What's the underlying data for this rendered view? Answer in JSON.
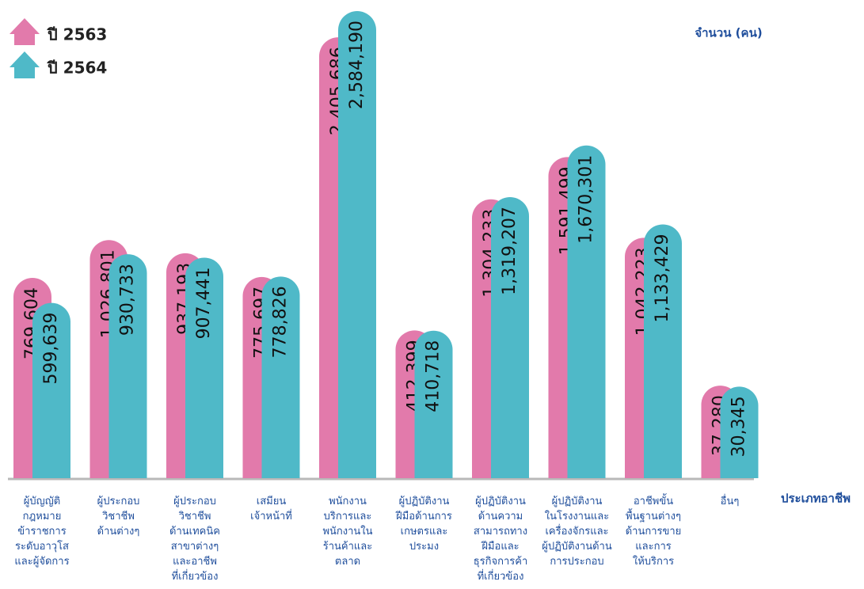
{
  "chart_data": {
    "type": "bar",
    "y_label": "จำนวน (คน)",
    "x_label": "ประเภทอาชีพ",
    "categories": [
      "ผู้บัญญัติ\nกฎหมาย\nข้าราชการ\nระดับอาวุโส\nและผู้จัดการ",
      "ผู้ประกอบ\nวิชาชีพ\nด้านต่างๆ",
      "ผู้ประกอบ\nวิชาชีพ\nด้านเทคนิค\nสาขาต่างๆ\nและอาชีพ\nที่เกี่ยวข้อง",
      "เสมียน\nเจ้าหน้าที่",
      "พนักงาน\nบริการและ\nพนักงานใน\nร้านค้าและ\nตลาด",
      "ผู้ปฏิบัติงาน\nฝีมือด้านการ\nเกษตรและ\nประมง",
      "ผู้ปฏิบัติงาน\nด้านความ\nสามารถทาง\nฝีมือและ\nธุรกิจการค้า\nที่เกี่ยวข้อง",
      "ผู้ปฏิบัติงาน\nในโรงงานและ\nเครื่องจักรและ\nผู้ปฏิบัติงานด้าน\nการประกอบ",
      "อาชีพขั้น\nพื้นฐานต่างๆ\nด้านการขาย\nและการ\nให้บริการ",
      "อื่นๆ"
    ],
    "series": [
      {
        "name": "ปี 2563",
        "color": "#e27aab",
        "values": [
          769604,
          1026801,
          937193,
          775697,
          2405686,
          412399,
          1304233,
          1591499,
          1042223,
          37280
        ],
        "value_labels": [
          "769,604",
          "1,026,801",
          "937,193",
          "775,697",
          "2,405,686",
          "412,399",
          "1,304,233",
          "1,591,499",
          "1,042,223",
          "37,280"
        ]
      },
      {
        "name": "ปี 2564",
        "color": "#4fb9c8",
        "values": [
          599639,
          930733,
          907441,
          778826,
          2584190,
          410718,
          1319207,
          1670301,
          1133429,
          30345
        ],
        "value_labels": [
          "599,639",
          "930,733",
          "907,441",
          "778,826",
          "2,584,190",
          "410,718",
          "1,319,207",
          "1,670,301",
          "1,133,429",
          "30,345"
        ]
      }
    ]
  }
}
